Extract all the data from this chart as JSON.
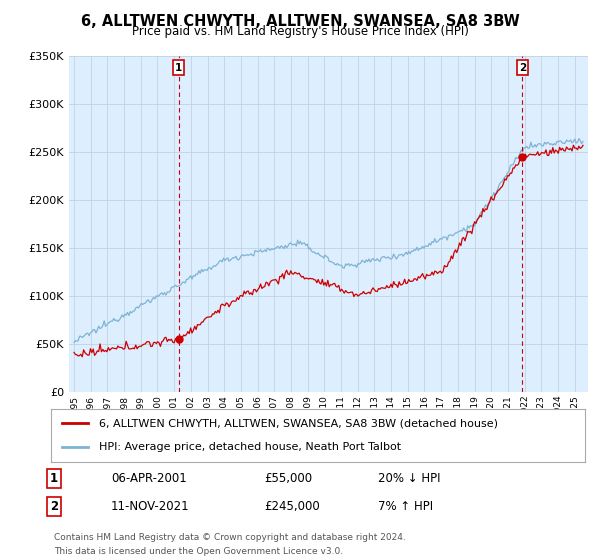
{
  "title": "6, ALLTWEN CHWYTH, ALLTWEN, SWANSEA, SA8 3BW",
  "subtitle": "Price paid vs. HM Land Registry's House Price Index (HPI)",
  "ylim": [
    0,
    350000
  ],
  "yticks": [
    0,
    50000,
    100000,
    150000,
    200000,
    250000,
    300000,
    350000
  ],
  "ytick_labels": [
    "£0",
    "£50K",
    "£100K",
    "£150K",
    "£200K",
    "£250K",
    "£300K",
    "£350K"
  ],
  "xlim_start": 1994.7,
  "xlim_end": 2025.8,
  "sale_color": "#cc0000",
  "hpi_color": "#7fb3d3",
  "plot_bg_color": "#ddeeff",
  "marker1_x": 2001.27,
  "marker1_y": 55000,
  "marker1_label": "1",
  "marker1_date": "06-APR-2001",
  "marker1_price": "£55,000",
  "marker1_hpi": "20% ↓ HPI",
  "marker2_x": 2021.87,
  "marker2_y": 245000,
  "marker2_label": "2",
  "marker2_date": "11-NOV-2021",
  "marker2_price": "£245,000",
  "marker2_hpi": "7% ↑ HPI",
  "legend_line1": "6, ALLTWEN CHWYTH, ALLTWEN, SWANSEA, SA8 3BW (detached house)",
  "legend_line2": "HPI: Average price, detached house, Neath Port Talbot",
  "footnote1": "Contains HM Land Registry data © Crown copyright and database right 2024.",
  "footnote2": "This data is licensed under the Open Government Licence v3.0.",
  "background_color": "#ffffff",
  "grid_color": "#bbccdd"
}
